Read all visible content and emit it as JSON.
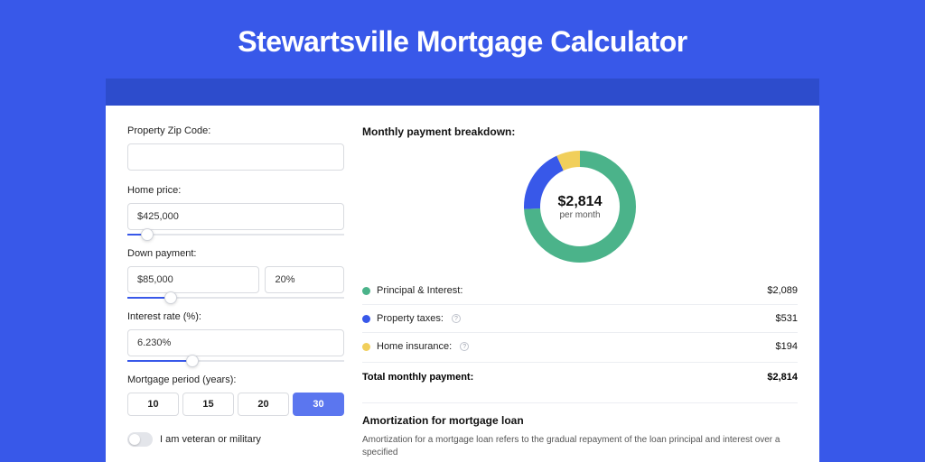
{
  "page": {
    "title": "Stewartsville Mortgage Calculator",
    "background_color": "#3858e9",
    "strip_color": "#2d4ccc",
    "card_background": "#ffffff"
  },
  "form": {
    "zip": {
      "label": "Property Zip Code:",
      "value": ""
    },
    "home_price": {
      "label": "Home price:",
      "value": "$425,000",
      "slider_pct": 9
    },
    "down_payment": {
      "label": "Down payment:",
      "amount": "$85,000",
      "percent": "20%",
      "slider_pct": 20
    },
    "interest_rate": {
      "label": "Interest rate (%):",
      "value": "6.230%",
      "slider_pct": 30
    },
    "mortgage_period": {
      "label": "Mortgage period (years):",
      "options": [
        "10",
        "15",
        "20",
        "30"
      ],
      "selected_index": 3
    },
    "veteran": {
      "label": "I am veteran or military",
      "checked": false
    }
  },
  "breakdown": {
    "title": "Monthly payment breakdown:",
    "center_amount": "$2,814",
    "center_sub": "per month",
    "donut_size": 124,
    "donut_stroke": 18,
    "items": [
      {
        "label": "Principal & Interest:",
        "value": "$2,089",
        "color": "#4bb38a",
        "pct": 74.2,
        "has_info": false
      },
      {
        "label": "Property taxes:",
        "value": "$531",
        "color": "#3858e9",
        "pct": 18.9,
        "has_info": true
      },
      {
        "label": "Home insurance:",
        "value": "$194",
        "color": "#f1cf5b",
        "pct": 6.9,
        "has_info": true
      }
    ],
    "total_label": "Total monthly payment:",
    "total_value": "$2,814"
  },
  "amortization": {
    "title": "Amortization for mortgage loan",
    "text": "Amortization for a mortgage loan refers to the gradual repayment of the loan principal and interest over a specified"
  }
}
